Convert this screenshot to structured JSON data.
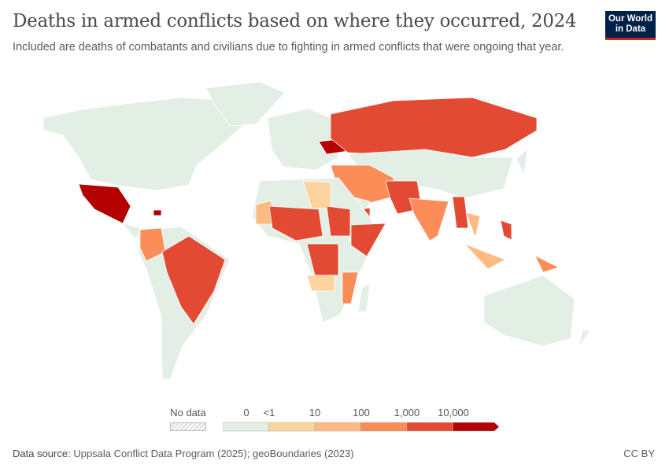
{
  "header": {
    "title": "Deaths in armed conflicts based on where they occurred, 2024",
    "subtitle": "Included are deaths of combatants and civilians due to fighting in armed conflicts that were ongoing that year.",
    "logo_text": "Our World in Data"
  },
  "legend": {
    "no_data_label": "No data",
    "labels": [
      "0",
      "<1",
      "10",
      "100",
      "1,000",
      "10,000"
    ],
    "bins": [
      {
        "label": "0",
        "color": "#e3efe4"
      },
      {
        "label": "<1",
        "color": "#fdd49e"
      },
      {
        "label": "10",
        "color": "#fdbb84"
      },
      {
        "label": "100",
        "color": "#fc8d59"
      },
      {
        "label": "1,000",
        "color": "#e34a33"
      },
      {
        "label": "10,000",
        "color": "#b30000"
      }
    ]
  },
  "regions": [
    {
      "name": "North America",
      "bin": 0
    },
    {
      "name": "Greenland",
      "bin": 0
    },
    {
      "name": "Mexico",
      "bin": 5
    },
    {
      "name": "Central America",
      "bin": 0
    },
    {
      "name": "Haiti",
      "bin": 5
    },
    {
      "name": "South America",
      "bin": 0
    },
    {
      "name": "Colombia",
      "bin": 3
    },
    {
      "name": "Brazil",
      "bin": 4
    },
    {
      "name": "Europe",
      "bin": 0
    },
    {
      "name": "Ukraine",
      "bin": 5
    },
    {
      "name": "Russia",
      "bin": 4
    },
    {
      "name": "Central and East Asia",
      "bin": 0
    },
    {
      "name": "Japan",
      "bin": 0
    },
    {
      "name": "Middle East",
      "bin": 3
    },
    {
      "name": "Saudi Arabia",
      "bin": 0
    },
    {
      "name": "Yemen",
      "bin": 4
    },
    {
      "name": "Pakistan",
      "bin": 4
    },
    {
      "name": "India",
      "bin": 3
    },
    {
      "name": "Myanmar",
      "bin": 4
    },
    {
      "name": "Thailand",
      "bin": 2
    },
    {
      "name": "Africa",
      "bin": 0
    },
    {
      "name": "Libya",
      "bin": 1
    },
    {
      "name": "Mauritania",
      "bin": 2
    },
    {
      "name": "Sahel",
      "bin": 4
    },
    {
      "name": "Sudan",
      "bin": 4
    },
    {
      "name": "Somalia",
      "bin": 4
    },
    {
      "name": "DR Congo",
      "bin": 4
    },
    {
      "name": "Angola",
      "bin": 1
    },
    {
      "name": "Mozambique",
      "bin": 3
    },
    {
      "name": "Madagascar",
      "bin": 0
    },
    {
      "name": "Philippines",
      "bin": 4
    },
    {
      "name": "Indonesia",
      "bin": 2
    },
    {
      "name": "Papua New Guinea",
      "bin": 3
    },
    {
      "name": "Australia",
      "bin": 0
    },
    {
      "name": "New Zealand",
      "bin": 0
    }
  ],
  "footer": {
    "source_label": "Data source:",
    "source_text": "Uppsala Conflict Data Program (2025); geoBoundaries (2023)",
    "license": "CC BY"
  }
}
